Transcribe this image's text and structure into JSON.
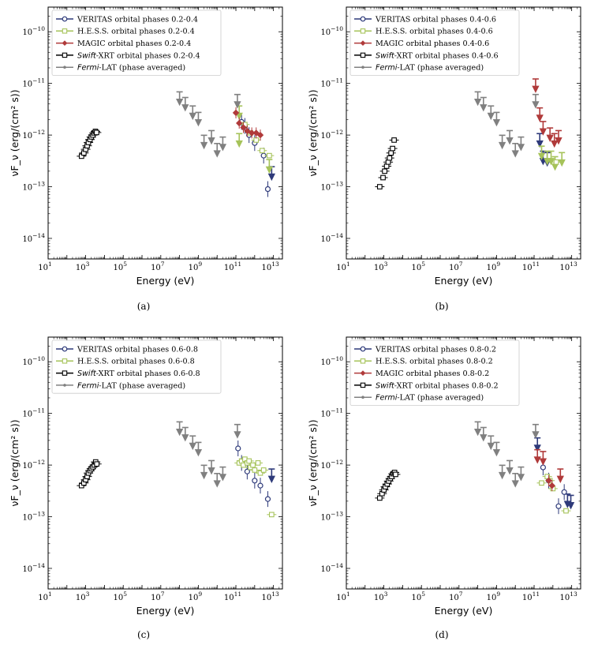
{
  "colors": {
    "veritas": "#2e3a7a",
    "hess": "#a6c35a",
    "magic": "#b03a3a",
    "swift": "#000000",
    "fermi": "#808080"
  },
  "chart_data": [
    {
      "panel": "(a)",
      "type": "scatter",
      "xlabel": "Energy (eV)",
      "ylabel": "νF_ν (erg/(cm² s))",
      "xscale": "log",
      "yscale": "log",
      "xlim": [
        10,
        30000000000000.0
      ],
      "ylim": [
        4e-15,
        3e-10
      ],
      "legend_position": "top-left",
      "legend": [
        {
          "key": "veritas",
          "label": "VERITAS orbital phases 0.2-0.4"
        },
        {
          "key": "hess",
          "label": "H.E.S.S. orbital phases 0.2-0.4"
        },
        {
          "key": "magic",
          "label": "MAGIC orbital phases 0.2-0.4"
        },
        {
          "key": "swift",
          "label_prefix": "Swift",
          "label": "-XRT orbital phases 0.2-0.4"
        },
        {
          "key": "fermi",
          "label_prefix": "Fermi",
          "label": "-LAT (phase averaged)"
        }
      ],
      "series": [
        {
          "key": "swift",
          "marker": "square",
          "points": [
            [
              600,
              3.9e-13
            ],
            [
              800,
              4.5e-13
            ],
            [
              1000,
              5.3e-13
            ],
            [
              1200,
              6.2e-13
            ],
            [
              1400,
              7.2e-13
            ],
            [
              1700,
              8.2e-13
            ],
            [
              2000,
              9.2e-13
            ],
            [
              2400,
              1e-12
            ],
            [
              2800,
              1.1e-12
            ],
            [
              3300,
              1.18e-12
            ],
            [
              3800,
              1.12e-12
            ]
          ],
          "upper_limits": []
        },
        {
          "key": "veritas",
          "marker": "circle",
          "points": [
            [
              200000000000.0,
              1.8e-12
            ],
            [
              300000000000.0,
              1.5e-12
            ],
            [
              500000000000.0,
              1e-12
            ],
            [
              1000000000000.0,
              7e-13
            ],
            [
              3000000000000.0,
              4e-13
            ],
            [
              5000000000000.0,
              9e-14
            ]
          ],
          "upper_limits": [
            [
              8000000000000.0,
              1.6e-13
            ]
          ]
        },
        {
          "key": "hess",
          "marker": "square",
          "points": [
            [
              300000000000.0,
              1.6e-12
            ],
            [
              600000000000.0,
              1.1e-12
            ],
            [
              1200000000000.0,
              8e-13
            ],
            [
              2500000000000.0,
              5e-13
            ],
            [
              6000000000000.0,
              4e-13
            ]
          ],
          "upper_limits": [
            [
              150000000000.0,
              2.4e-12
            ],
            [
              150000000000.0,
              7e-13
            ],
            [
              6000000000000.0,
              2.2e-13
            ]
          ]
        },
        {
          "key": "magic",
          "marker": "diamond",
          "points": [
            [
              100000000000.0,
              2.7e-12
            ],
            [
              150000000000.0,
              1.7e-12
            ],
            [
              250000000000.0,
              1.4e-12
            ],
            [
              400000000000.0,
              1.2e-12
            ],
            [
              700000000000.0,
              1.1e-12
            ],
            [
              1200000000000.0,
              1.1e-12
            ],
            [
              2000000000000.0,
              1e-12
            ]
          ],
          "upper_limits": []
        },
        {
          "key": "fermi",
          "marker": "dot",
          "points": [],
          "upper_limits": [
            [
              100000000.0,
              4.5e-12
            ],
            [
              200000000.0,
              3.5e-12
            ],
            [
              500000000.0,
              2.4e-12
            ],
            [
              1000000000.0,
              1.8e-12
            ],
            [
              2000000000.0,
              6.5e-13
            ],
            [
              5000000000.0,
              8e-13
            ],
            [
              10000000000.0,
              4.5e-13
            ],
            [
              20000000000.0,
              6e-13
            ],
            [
              120000000000.0,
              4e-12
            ]
          ]
        }
      ]
    },
    {
      "panel": "(b)",
      "type": "scatter",
      "xlabel": "Energy (eV)",
      "ylabel": "νF_ν (erg/(cm² s))",
      "xscale": "log",
      "yscale": "log",
      "xlim": [
        10,
        30000000000000.0
      ],
      "ylim": [
        4e-15,
        3e-10
      ],
      "legend_position": "top-left",
      "legend": [
        {
          "key": "veritas",
          "label": "VERITAS orbital phases 0.4-0.6"
        },
        {
          "key": "hess",
          "label": "H.E.S.S. orbital phases 0.4-0.6"
        },
        {
          "key": "magic",
          "label": "MAGIC orbital phases 0.4-0.6"
        },
        {
          "key": "swift",
          "label_prefix": "Swift",
          "label": "-XRT orbital phases 0.4-0.6"
        },
        {
          "key": "fermi",
          "label_prefix": "Fermi",
          "label": "-LAT (phase averaged)"
        }
      ],
      "series": [
        {
          "key": "swift",
          "marker": "square",
          "points": [
            [
              600,
              1e-13
            ],
            [
              900,
              1.5e-13
            ],
            [
              1100,
              2e-13
            ],
            [
              1400,
              2.5e-13
            ],
            [
              1700,
              3e-13
            ],
            [
              2000,
              3.6e-13
            ],
            [
              2400,
              4.5e-13
            ],
            [
              2900,
              5.5e-13
            ],
            [
              3500,
              8e-13
            ]
          ],
          "upper_limits": []
        },
        {
          "key": "veritas",
          "marker": "circle",
          "points": [],
          "upper_limits": [
            [
              200000000000.0,
              7e-13
            ],
            [
              300000000000.0,
              3.2e-13
            ],
            [
              500000000000.0,
              3e-13
            ]
          ]
        },
        {
          "key": "hess",
          "marker": "square",
          "points": [
            [
              1500000000000.0,
              3e-13
            ]
          ],
          "upper_limits": [
            [
              250000000000.0,
              4e-13
            ],
            [
              500000000000.0,
              3.2e-13
            ],
            [
              800000000000.0,
              3.2e-13
            ],
            [
              1300000000000.0,
              2.5e-13
            ],
            [
              3000000000000.0,
              3e-13
            ]
          ]
        },
        {
          "key": "magic",
          "marker": "diamond",
          "points": [],
          "upper_limits": [
            [
              120000000000.0,
              8e-12
            ],
            [
              200000000000.0,
              2.2e-12
            ],
            [
              300000000000.0,
              1.2e-12
            ],
            [
              700000000000.0,
              9e-13
            ],
            [
              1200000000000.0,
              7e-13
            ],
            [
              2000000000000.0,
              8e-13
            ]
          ]
        },
        {
          "key": "fermi",
          "marker": "dot",
          "points": [],
          "upper_limits": [
            [
              100000000.0,
              4.5e-12
            ],
            [
              200000000.0,
              3.5e-12
            ],
            [
              500000000.0,
              2.4e-12
            ],
            [
              1000000000.0,
              1.8e-12
            ],
            [
              2000000000.0,
              6.5e-13
            ],
            [
              5000000000.0,
              8e-13
            ],
            [
              10000000000.0,
              4.5e-13
            ],
            [
              20000000000.0,
              6e-13
            ],
            [
              120000000000.0,
              4e-12
            ]
          ]
        }
      ]
    },
    {
      "panel": "(c)",
      "type": "scatter",
      "xlabel": "Energy (eV)",
      "ylabel": "νF_ν (erg/(cm² s))",
      "xscale": "log",
      "yscale": "log",
      "xlim": [
        10,
        30000000000000.0
      ],
      "ylim": [
        4e-15,
        3e-10
      ],
      "legend_position": "top-left",
      "legend": [
        {
          "key": "veritas",
          "label": "VERITAS orbital phases 0.6-0.8"
        },
        {
          "key": "hess",
          "label": "H.E.S.S. orbital phases 0.6-0.8"
        },
        {
          "key": "swift",
          "label_prefix": "Swift",
          "label": "-XRT orbital phases 0.6-0.8"
        },
        {
          "key": "fermi",
          "label_prefix": "Fermi",
          "label": "-LAT (phase averaged)"
        }
      ],
      "series": [
        {
          "key": "swift",
          "marker": "square",
          "points": [
            [
              600,
              4e-13
            ],
            [
              800,
              4.5e-13
            ],
            [
              1000,
              5.2e-13
            ],
            [
              1200,
              6e-13
            ],
            [
              1400,
              7e-13
            ],
            [
              1700,
              7.8e-13
            ],
            [
              2000,
              8.5e-13
            ],
            [
              2400,
              9.2e-13
            ],
            [
              2900,
              1e-12
            ],
            [
              3400,
              1.15e-12
            ],
            [
              3900,
              1.05e-12
            ]
          ],
          "upper_limits": []
        },
        {
          "key": "veritas",
          "marker": "circle",
          "points": [
            [
              130000000000.0,
              2.1e-12
            ],
            [
              200000000000.0,
              1.1e-12
            ],
            [
              400000000000.0,
              7.5e-13
            ],
            [
              1000000000000.0,
              5e-13
            ],
            [
              2000000000000.0,
              4e-13
            ],
            [
              5000000000000.0,
              2.2e-13
            ]
          ],
          "upper_limits": [
            [
              8000000000000.0,
              5.5e-13
            ]
          ]
        },
        {
          "key": "hess",
          "marker": "square",
          "points": [
            [
              150000000000.0,
              1.1e-12
            ],
            [
              200000000000.0,
              1.2e-12
            ],
            [
              250000000000.0,
              1e-12
            ],
            [
              300000000000.0,
              1.3e-12
            ],
            [
              400000000000.0,
              1.1e-12
            ],
            [
              500000000000.0,
              1.2e-12
            ],
            [
              600000000000.0,
              9e-13
            ],
            [
              800000000000.0,
              1e-12
            ],
            [
              1000000000000.0,
              8e-13
            ],
            [
              1500000000000.0,
              1.1e-12
            ],
            [
              2000000000000.0,
              7e-13
            ],
            [
              3000000000000.0,
              8e-13
            ],
            [
              8000000000000.0,
              1.1e-13
            ]
          ],
          "upper_limits": []
        },
        {
          "key": "fermi",
          "marker": "dot",
          "points": [],
          "upper_limits": [
            [
              100000000.0,
              4.5e-12
            ],
            [
              200000000.0,
              3.5e-12
            ],
            [
              500000000.0,
              2.4e-12
            ],
            [
              1000000000.0,
              1.8e-12
            ],
            [
              2000000000.0,
              6.5e-13
            ],
            [
              5000000000.0,
              8e-13
            ],
            [
              10000000000.0,
              4.5e-13
            ],
            [
              20000000000.0,
              6e-13
            ],
            [
              120000000000.0,
              4e-12
            ]
          ]
        }
      ]
    },
    {
      "panel": "(d)",
      "type": "scatter",
      "xlabel": "Energy (eV)",
      "ylabel": "νF_ν (erg/(cm² s))",
      "xscale": "log",
      "yscale": "log",
      "xlim": [
        10,
        30000000000000.0
      ],
      "ylim": [
        4e-15,
        3e-10
      ],
      "legend_position": "top-left",
      "legend": [
        {
          "key": "veritas",
          "label": "VERITAS orbital phases 0.8-0.2"
        },
        {
          "key": "hess",
          "label": "H.E.S.S. orbital phases 0.8-0.2"
        },
        {
          "key": "magic",
          "label": "MAGIC orbital phases 0.8-0.2"
        },
        {
          "key": "swift",
          "label_prefix": "Swift",
          "label": "-XRT orbital phases 0.8-0.2"
        },
        {
          "key": "fermi",
          "label_prefix": "Fermi",
          "label": "-LAT (phase averaged)"
        }
      ],
      "series": [
        {
          "key": "swift",
          "marker": "square",
          "points": [
            [
              600,
              2.3e-13
            ],
            [
              800,
              2.8e-13
            ],
            [
              1000,
              3.3e-13
            ],
            [
              1200,
              3.8e-13
            ],
            [
              1500,
              4.3e-13
            ],
            [
              1800,
              4.9e-13
            ],
            [
              2200,
              5.5e-13
            ],
            [
              2600,
              6e-13
            ],
            [
              3100,
              6.8e-13
            ],
            [
              3700,
              7.2e-13
            ],
            [
              4200,
              6.6e-13
            ]
          ],
          "upper_limits": []
        },
        {
          "key": "veritas",
          "marker": "circle",
          "points": [
            [
              300000000000.0,
              9e-13
            ],
            [
              600000000000.0,
              5e-13
            ],
            [
              2000000000000.0,
              1.6e-13
            ],
            [
              4000000000000.0,
              3e-13
            ]
          ],
          "upper_limits": [
            [
              150000000000.0,
              2.2e-12
            ],
            [
              6000000000000.0,
              1.8e-13
            ],
            [
              9000000000000.0,
              1.7e-13
            ]
          ]
        },
        {
          "key": "hess",
          "marker": "square",
          "points": [
            [
              250000000000.0,
              4.5e-13
            ],
            [
              500000000000.0,
              6e-13
            ],
            [
              700000000000.0,
              5e-13
            ],
            [
              1000000000000.0,
              3.5e-13
            ],
            [
              5000000000000.0,
              1.3e-13
            ]
          ],
          "upper_limits": []
        },
        {
          "key": "magic",
          "marker": "diamond",
          "points": [
            [
              600000000000.0,
              5e-13
            ],
            [
              900000000000.0,
              4e-13
            ]
          ],
          "upper_limits": [
            [
              150000000000.0,
              1.3e-12
            ],
            [
              300000000000.0,
              1.2e-12
            ],
            [
              2500000000000.0,
              5.5e-13
            ]
          ]
        },
        {
          "key": "fermi",
          "marker": "dot",
          "points": [],
          "upper_limits": [
            [
              100000000.0,
              4.5e-12
            ],
            [
              200000000.0,
              3.5e-12
            ],
            [
              500000000.0,
              2.4e-12
            ],
            [
              1000000000.0,
              1.8e-12
            ],
            [
              2000000000.0,
              6.5e-13
            ],
            [
              5000000000.0,
              8e-13
            ],
            [
              10000000000.0,
              4.5e-13
            ],
            [
              20000000000.0,
              6e-13
            ],
            [
              120000000000.0,
              4e-12
            ]
          ]
        }
      ]
    }
  ]
}
